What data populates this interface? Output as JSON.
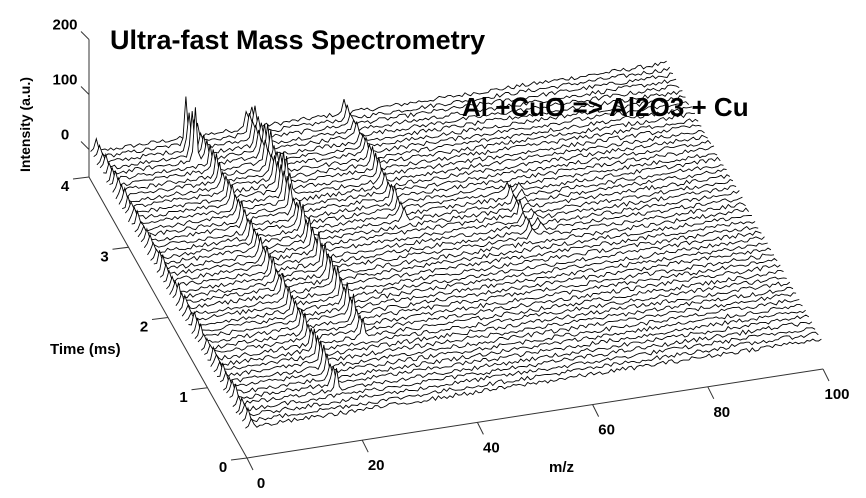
{
  "chart_data": {
    "type": "waterfall",
    "title": "Ultra-fast Mass Spectrometry",
    "annotation": "Al +CuO => Al2O3 + Cu",
    "xlabel": "m/z",
    "ylabel": "Time (ms)",
    "zlabel": "Intensity (a.u.)",
    "xlim": [
      0,
      100
    ],
    "ylim": [
      0,
      4
    ],
    "zlim": [
      -50,
      200
    ],
    "x_ticks": [
      "0",
      "20",
      "40",
      "60",
      "80",
      "100"
    ],
    "y_ticks": [
      "0",
      "1",
      "2",
      "3",
      "4"
    ],
    "z_ticks": [
      "0",
      "100",
      "200"
    ],
    "n_traces": 50,
    "noise_amplitude": 4,
    "peaks": [
      {
        "mz": 1,
        "t_start": 0,
        "t_end": 4,
        "intensity": 25
      },
      {
        "mz": 18,
        "t_start": 0.3,
        "t_end": 4,
        "intensity": 40
      },
      {
        "mz": 16,
        "t_start": 3.6,
        "t_end": 3.9,
        "intensity": 110
      },
      {
        "mz": 27,
        "t_start": 1.0,
        "t_end": 4,
        "intensity": 45
      },
      {
        "mz": 28,
        "t_start": 3.0,
        "t_end": 4,
        "intensity": 60
      },
      {
        "mz": 44,
        "t_start": 2.4,
        "t_end": 4,
        "intensity": 30
      },
      {
        "mz": 63,
        "t_start": 1.9,
        "t_end": 2.6,
        "intensity": 25
      },
      {
        "mz": 65,
        "t_start": 1.9,
        "t_end": 2.6,
        "intensity": 12
      }
    ]
  }
}
